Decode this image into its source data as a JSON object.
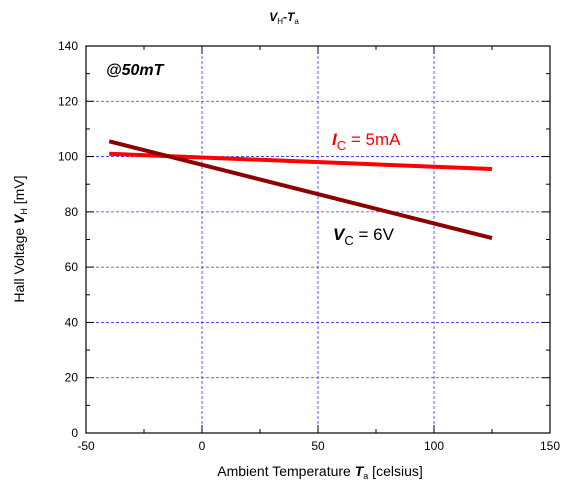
{
  "chart_data": {
    "type": "line",
    "title_main": "V",
    "title_main_sub": "H",
    "title_sep": "-",
    "title_second": "T",
    "title_second_sub": "a",
    "xlabel_prefix": "Ambient Temperature ",
    "xlabel_var": "T",
    "xlabel_sub": "a",
    "xlabel_suffix": " [celsius]",
    "ylabel_prefix": "Hall Voltage ",
    "ylabel_var": "V",
    "ylabel_sub": "H",
    "ylabel_suffix": " [mV]",
    "xlim": [
      -50,
      150
    ],
    "ylim": [
      0,
      140
    ],
    "xticks": [
      -50,
      0,
      50,
      100,
      150
    ],
    "yticks": [
      0,
      20,
      40,
      60,
      80,
      100,
      120,
      140
    ],
    "grid": true,
    "condition_label": "@50mT",
    "series": [
      {
        "key": "ic",
        "x": [
          -40,
          125
        ],
        "y": [
          101,
          95.5
        ],
        "color": "#ff0000",
        "label_var": "I",
        "label_sub": "C",
        "label_rest": " = 5mA"
      },
      {
        "key": "vc",
        "x": [
          -40,
          125
        ],
        "y": [
          105.5,
          70.5
        ],
        "color": "#8b0000",
        "label_var": "V",
        "label_sub": "C",
        "label_rest": " = 6V"
      }
    ]
  }
}
